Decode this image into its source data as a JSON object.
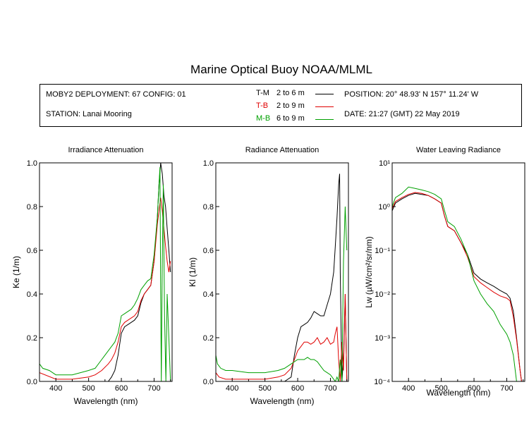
{
  "title": "Marine Optical Buoy NOAA/MLML",
  "info": {
    "deployment": "MOBY2 DEPLOYMENT: 67 CONFIG: 01",
    "station": "STATION: Lanai Mooring",
    "position": "POSITION: 20° 48.93' N   157° 11.24' W",
    "date": "DATE: 21:27 (GMT) 22 May 2019"
  },
  "legend": [
    {
      "code": "T-M",
      "range": "2 to 6  m",
      "color": "#000000"
    },
    {
      "code": "T-B",
      "range": "2 to 9  m",
      "color": "#e00000"
    },
    {
      "code": "M-B",
      "range": "6 to 9  m",
      "color": "#00a000"
    }
  ],
  "chart_data": [
    {
      "type": "line",
      "title": "Irradiance Attenuation",
      "xlabel": "Wavelength (nm)",
      "ylabel": "Ke  (1/m)",
      "xlim": [
        350,
        755
      ],
      "ylim": [
        0,
        1
      ],
      "xticks": [
        "400",
        "500",
        "600",
        "700"
      ],
      "yticks": [
        "0.0",
        "0.2",
        "0.4",
        "0.6",
        "0.8",
        "1.0"
      ],
      "series": [
        {
          "name": "T-M",
          "color": "#000000",
          "x": [
            350,
            400,
            450,
            500,
            540,
            560,
            570,
            580,
            590,
            600,
            610,
            620,
            630,
            640,
            650,
            660,
            670,
            680,
            690,
            700,
            710,
            715,
            720,
            725,
            730,
            735,
            740,
            745,
            750
          ],
          "y": [
            0,
            0,
            0,
            0,
            0,
            0,
            0.02,
            0.05,
            0.12,
            0.22,
            0.25,
            0.26,
            0.27,
            0.28,
            0.3,
            0.36,
            0.4,
            0.42,
            0.44,
            0.55,
            0.75,
            0.9,
            1.0,
            0.95,
            0.85,
            0.8,
            0.7,
            0.6,
            0.5
          ]
        },
        {
          "name": "T-B",
          "color": "#e00000",
          "x": [
            350,
            400,
            450,
            500,
            520,
            540,
            560,
            570,
            580,
            590,
            600,
            610,
            620,
            630,
            640,
            650,
            660,
            670,
            680,
            690,
            700,
            710,
            715,
            720,
            725,
            730,
            735,
            740,
            745,
            750
          ],
          "y": [
            0.04,
            0.01,
            0.01,
            0.02,
            0.03,
            0.05,
            0.08,
            0.1,
            0.13,
            0.18,
            0.25,
            0.27,
            0.28,
            0.29,
            0.3,
            0.32,
            0.37,
            0.4,
            0.42,
            0.44,
            0.55,
            0.72,
            0.78,
            0.84,
            0.78,
            0.7,
            0.62,
            0.55,
            0.5,
            0.55
          ]
        },
        {
          "name": "M-B",
          "color": "#00a000",
          "x": [
            350,
            360,
            380,
            400,
            450,
            500,
            520,
            540,
            560,
            570,
            580,
            590,
            600,
            610,
            620,
            630,
            640,
            650,
            660,
            670,
            680,
            690,
            700,
            710,
            715,
            718,
            720,
            722,
            725,
            728,
            732,
            736,
            740,
            745,
            750
          ],
          "y": [
            0.08,
            0.06,
            0.05,
            0.03,
            0.03,
            0.05,
            0.06,
            0.1,
            0.14,
            0.16,
            0.18,
            0.22,
            0.3,
            0.31,
            0.32,
            0.33,
            0.35,
            0.38,
            0.42,
            0.44,
            0.46,
            0.47,
            0.58,
            0.75,
            0.9,
            0.98,
            0.4,
            0.0,
            0.55,
            0.9,
            0.3,
            0.0,
            0.4,
            0.2,
            0.0
          ]
        }
      ]
    },
    {
      "type": "line",
      "title": "Radiance Attenuation",
      "xlabel": "Wavelength (nm)",
      "ylabel": "Kl  (1/m)",
      "xlim": [
        350,
        755
      ],
      "ylim": [
        0,
        1
      ],
      "xticks": [
        "400",
        "500",
        "600",
        "700"
      ],
      "yticks": [
        "0.0",
        "0.2",
        "0.4",
        "0.6",
        "0.8",
        "1.0"
      ],
      "series": [
        {
          "name": "T-M",
          "color": "#000000",
          "x": [
            350,
            400,
            450,
            500,
            540,
            560,
            580,
            590,
            600,
            610,
            620,
            630,
            640,
            650,
            660,
            670,
            680,
            690,
            700,
            710,
            715,
            720,
            725,
            728,
            730,
            735,
            740,
            745,
            750
          ],
          "y": [
            0,
            0,
            0,
            0,
            0,
            0,
            0.02,
            0.12,
            0.2,
            0.25,
            0.26,
            0.27,
            0.29,
            0.32,
            0.31,
            0.3,
            0.3,
            0.35,
            0.4,
            0.5,
            0.62,
            0.75,
            0.9,
            0.95,
            0.5,
            0.0,
            0.1,
            0.4,
            0.0
          ]
        },
        {
          "name": "T-B",
          "color": "#e00000",
          "x": [
            350,
            360,
            380,
            400,
            450,
            500,
            540,
            560,
            580,
            590,
            600,
            610,
            620,
            630,
            640,
            650,
            660,
            670,
            680,
            690,
            700,
            710,
            715,
            720,
            725,
            730,
            735,
            740,
            745,
            750
          ],
          "y": [
            0.04,
            0.02,
            0.01,
            0.01,
            0.01,
            0.01,
            0.02,
            0.03,
            0.06,
            0.1,
            0.14,
            0.16,
            0.18,
            0.18,
            0.17,
            0.18,
            0.2,
            0.17,
            0.18,
            0.2,
            0.17,
            0.18,
            0.22,
            0.25,
            0.1,
            0.0,
            0.18,
            0.05,
            0.4,
            0.0
          ]
        },
        {
          "name": "M-B",
          "color": "#00a000",
          "x": [
            350,
            355,
            365,
            380,
            400,
            450,
            500,
            540,
            560,
            580,
            590,
            600,
            610,
            620,
            630,
            640,
            650,
            660,
            670,
            680,
            690,
            700,
            710,
            715,
            720,
            725,
            730,
            735,
            740,
            745,
            750
          ],
          "y": [
            0.12,
            0.08,
            0.06,
            0.05,
            0.05,
            0.04,
            0.04,
            0.05,
            0.06,
            0.08,
            0.09,
            0.1,
            0.1,
            0.1,
            0.11,
            0.1,
            0.1,
            0.09,
            0.07,
            0.05,
            0.04,
            0.03,
            0.01,
            0.0,
            0.02,
            0.0,
            0.1,
            0.0,
            0.55,
            0.8,
            0.6
          ]
        }
      ]
    },
    {
      "type": "line",
      "title": "Water Leaving Radiance",
      "xlabel": "Wavelength (nm)",
      "ylabel": "Lw  (µW/cm²/sr/nm)",
      "yscale": "log",
      "xlim": [
        350,
        755
      ],
      "ylim": [
        0.0001,
        10
      ],
      "xticks": [
        "400",
        "500",
        "600",
        "700"
      ],
      "yticks": [
        "10⁻⁴",
        "10⁻³",
        "10⁻²",
        "10⁻¹",
        "10⁰",
        "10¹"
      ],
      "series": [
        {
          "name": "T-M",
          "color": "#000000",
          "x": [
            350,
            360,
            380,
            400,
            420,
            440,
            460,
            480,
            500,
            510,
            520,
            540,
            560,
            580,
            600,
            620,
            640,
            660,
            680,
            700,
            710,
            720,
            730,
            740,
            745
          ],
          "y": [
            0.8,
            1.2,
            1.5,
            1.8,
            2.0,
            1.9,
            1.8,
            1.5,
            1.2,
            0.6,
            0.35,
            0.28,
            0.15,
            0.08,
            0.03,
            0.022,
            0.018,
            0.015,
            0.012,
            0.01,
            0.008,
            0.004,
            0.001,
            0.0002,
            0.0001
          ]
        },
        {
          "name": "T-B",
          "color": "#e00000",
          "x": [
            350,
            360,
            380,
            400,
            420,
            440,
            460,
            480,
            500,
            510,
            520,
            540,
            560,
            580,
            600,
            620,
            640,
            660,
            680,
            700,
            710,
            720,
            730,
            740,
            745
          ],
          "y": [
            0.9,
            1.3,
            1.6,
            1.9,
            2.1,
            2.0,
            1.8,
            1.5,
            1.2,
            0.6,
            0.35,
            0.28,
            0.15,
            0.07,
            0.025,
            0.018,
            0.014,
            0.011,
            0.009,
            0.008,
            0.007,
            0.003,
            0.0009,
            0.0002,
            0.0001
          ]
        },
        {
          "name": "M-B",
          "color": "#00a000",
          "x": [
            350,
            360,
            380,
            400,
            420,
            440,
            460,
            480,
            500,
            510,
            520,
            540,
            560,
            580,
            600,
            620,
            640,
            660,
            680,
            700,
            710,
            720,
            725,
            730
          ],
          "y": [
            1.0,
            1.6,
            2.0,
            2.8,
            2.6,
            2.4,
            2.2,
            1.9,
            1.5,
            0.8,
            0.45,
            0.35,
            0.18,
            0.08,
            0.02,
            0.01,
            0.006,
            0.004,
            0.002,
            0.0012,
            0.0008,
            0.0004,
            0.0002,
            0.0001
          ]
        }
      ]
    }
  ]
}
